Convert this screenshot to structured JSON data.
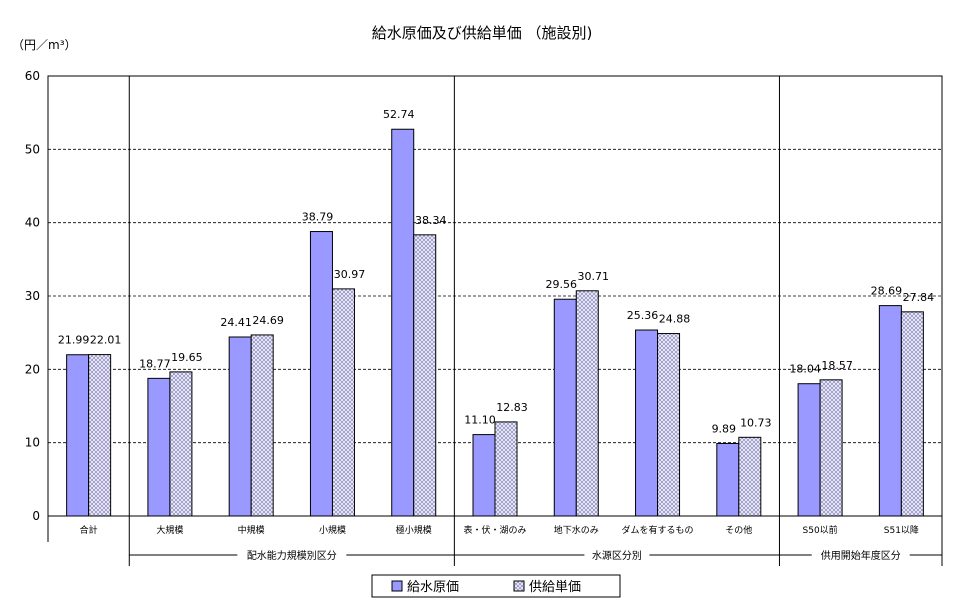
{
  "chart_data": {
    "type": "bar",
    "title": "給水原価及び供給単価 （施設別)",
    "ylabel": "（円／m³）",
    "xlabel": "",
    "ylim": [
      0,
      60
    ],
    "yticks": [
      0,
      10,
      20,
      30,
      40,
      50,
      60
    ],
    "grid": true,
    "legend_position": "bottom-center",
    "categories": [
      "合計",
      "大規模",
      "中規模",
      "小規模",
      "極小規模",
      "表・伏・湖のみ",
      "地下水のみ",
      "ダムを有するもの",
      "その他",
      "S50以前",
      "S51以降"
    ],
    "groups": [
      {
        "label": "配水能力規模別区分",
        "start": 1,
        "end": 4
      },
      {
        "label": "水源区分別",
        "start": 5,
        "end": 8
      },
      {
        "label": "供用開始年度区分",
        "start": 9,
        "end": 10
      }
    ],
    "series": [
      {
        "name": "給水原価",
        "color": "#9999ff",
        "pattern": "solid",
        "values": [
          21.99,
          18.77,
          24.41,
          38.79,
          52.74,
          11.1,
          29.56,
          25.36,
          9.89,
          18.04,
          28.69
        ],
        "labels": [
          "21.99",
          "18.77",
          "24.41",
          "38.79",
          "52.74",
          "11.10",
          "29.56",
          "25.36",
          "9.89",
          "18.04",
          "28.69"
        ]
      },
      {
        "name": "供給単価",
        "color": "#c0c0ff",
        "pattern": "crosshatch",
        "values": [
          22.01,
          19.65,
          24.69,
          30.97,
          38.34,
          12.83,
          30.71,
          24.88,
          10.73,
          18.57,
          27.84
        ],
        "labels": [
          "22.01",
          "19.65",
          "24.69",
          "30.97",
          "38.34",
          "12.83",
          "30.71",
          "24.88",
          "10.73",
          "18.57",
          "27.84"
        ]
      }
    ]
  }
}
